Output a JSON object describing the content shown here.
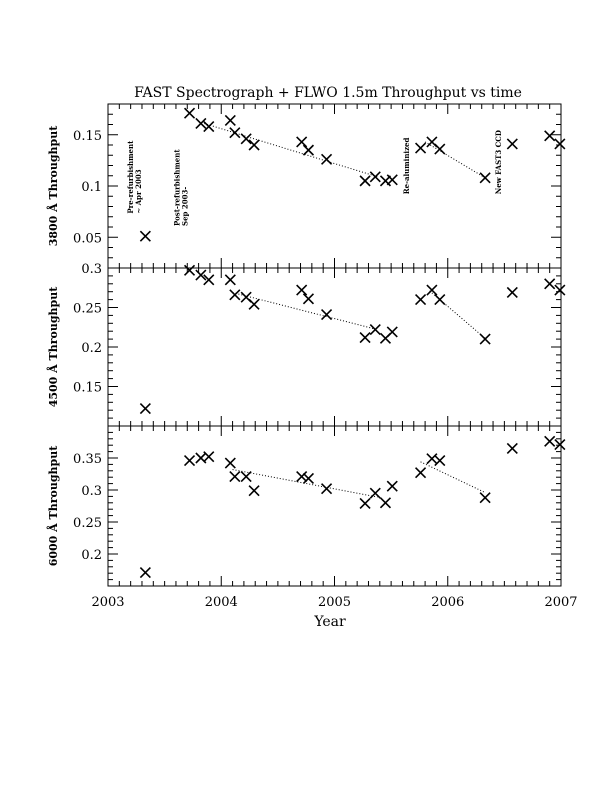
{
  "chart_data": {
    "type": "scatter",
    "title": "FAST Spectrograph + FLWO 1.5m Throughput vs time",
    "xlabel": "Year",
    "xlim": [
      2003,
      2007
    ],
    "x_ticks": [
      "2003",
      "2004",
      "2005",
      "2006",
      "2007"
    ],
    "panels": [
      {
        "ylabel": "3800 Å Throughput",
        "ylim": [
          0.02,
          0.18
        ],
        "y_ticks": [
          0.05,
          0.1,
          0.15
        ],
        "y_tick_labels": [
          "0.05",
          "0.1",
          "0.15"
        ],
        "points": [
          [
            2003.33,
            0.051
          ],
          [
            2003.72,
            0.171
          ],
          [
            2003.82,
            0.161
          ],
          [
            2003.89,
            0.158
          ],
          [
            2004.08,
            0.164
          ],
          [
            2004.12,
            0.152
          ],
          [
            2004.22,
            0.146
          ],
          [
            2004.29,
            0.14
          ],
          [
            2004.71,
            0.143
          ],
          [
            2004.77,
            0.135
          ],
          [
            2004.93,
            0.126
          ],
          [
            2005.27,
            0.105
          ],
          [
            2005.36,
            0.109
          ],
          [
            2005.45,
            0.105
          ],
          [
            2005.51,
            0.106
          ],
          [
            2005.76,
            0.137
          ],
          [
            2005.86,
            0.143
          ],
          [
            2005.93,
            0.136
          ],
          [
            2006.33,
            0.108
          ],
          [
            2006.57,
            0.141
          ],
          [
            2006.9,
            0.149
          ],
          [
            2006.99,
            0.141
          ]
        ],
        "trend_lines": [
          [
            [
              2003.85,
              0.161
            ],
            [
              2005.38,
              0.109
            ]
          ],
          [
            [
              2005.8,
              0.143
            ],
            [
              2006.33,
              0.108
            ]
          ]
        ],
        "annotations": [
          {
            "x": 2003.22,
            "y": 0.073,
            "lines": [
              "Pre-refurbishment",
              "~ Apr 2003"
            ]
          },
          {
            "x": 2003.63,
            "y": 0.061,
            "lines": [
              "Post-refurbishment",
              "Sep 2003-"
            ]
          },
          {
            "x": 2005.66,
            "y": 0.092,
            "lines": [
              "Re-aluminized"
            ]
          },
          {
            "x": 2006.47,
            "y": 0.092,
            "lines": [
              "New FAST3 CCD"
            ]
          }
        ]
      },
      {
        "ylabel": "4500 Å Throughput",
        "ylim": [
          0.1,
          0.3
        ],
        "y_ticks": [
          0.15,
          0.2,
          0.25,
          0.3
        ],
        "y_tick_labels": [
          "0.15",
          "0.2",
          "0.25",
          "0.3"
        ],
        "points": [
          [
            2003.33,
            0.122
          ],
          [
            2003.72,
            0.297
          ],
          [
            2003.82,
            0.291
          ],
          [
            2003.89,
            0.285
          ],
          [
            2004.08,
            0.285
          ],
          [
            2004.12,
            0.266
          ],
          [
            2004.22,
            0.263
          ],
          [
            2004.29,
            0.254
          ],
          [
            2004.71,
            0.272
          ],
          [
            2004.77,
            0.261
          ],
          [
            2004.93,
            0.241
          ],
          [
            2005.27,
            0.212
          ],
          [
            2005.36,
            0.222
          ],
          [
            2005.45,
            0.211
          ],
          [
            2005.51,
            0.219
          ],
          [
            2005.76,
            0.26
          ],
          [
            2005.86,
            0.272
          ],
          [
            2005.93,
            0.26
          ],
          [
            2006.33,
            0.21
          ],
          [
            2006.57,
            0.269
          ],
          [
            2006.9,
            0.28
          ],
          [
            2006.99,
            0.272
          ]
        ],
        "trend_lines": [
          [
            [
              2004.1,
              0.269
            ],
            [
              2005.38,
              0.222
            ]
          ],
          [
            [
              2005.84,
              0.271
            ],
            [
              2006.33,
              0.211
            ]
          ]
        ]
      },
      {
        "ylabel": "6000 Å Throughput",
        "ylim": [
          0.15,
          0.4
        ],
        "y_ticks": [
          0.2,
          0.25,
          0.3,
          0.35
        ],
        "y_tick_labels": [
          "0.2",
          "0.25",
          "0.3",
          "0.35"
        ],
        "points": [
          [
            2003.33,
            0.171
          ],
          [
            2003.72,
            0.346
          ],
          [
            2003.82,
            0.35
          ],
          [
            2003.89,
            0.352
          ],
          [
            2004.08,
            0.342
          ],
          [
            2004.12,
            0.321
          ],
          [
            2004.22,
            0.321
          ],
          [
            2004.29,
            0.299
          ],
          [
            2004.71,
            0.321
          ],
          [
            2004.77,
            0.318
          ],
          [
            2004.93,
            0.302
          ],
          [
            2005.27,
            0.279
          ],
          [
            2005.36,
            0.295
          ],
          [
            2005.45,
            0.28
          ],
          [
            2005.51,
            0.306
          ],
          [
            2005.76,
            0.327
          ],
          [
            2005.86,
            0.349
          ],
          [
            2005.93,
            0.346
          ],
          [
            2006.33,
            0.288
          ],
          [
            2006.57,
            0.365
          ],
          [
            2006.9,
            0.376
          ],
          [
            2006.99,
            0.371
          ]
        ],
        "trend_lines": [
          [
            [
              2004.1,
              0.332
            ],
            [
              2005.38,
              0.289
            ]
          ],
          [
            [
              2005.76,
              0.344
            ],
            [
              2006.33,
              0.296
            ]
          ]
        ]
      }
    ]
  }
}
